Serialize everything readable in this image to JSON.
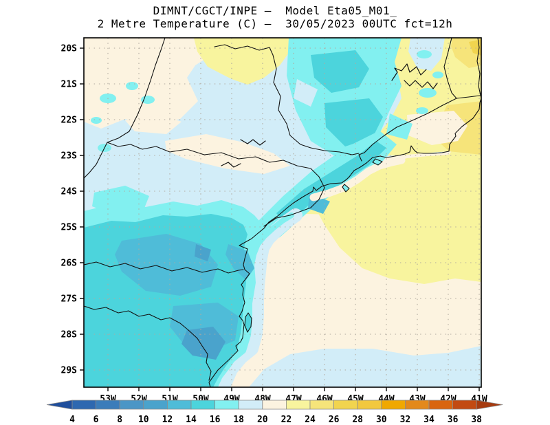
{
  "title": {
    "line1": "DIMNT/CGCT/INPE –  Model Eta05_M01_",
    "line2": "2 Metre Temperature (C) –  30/05/2023 00UTC fct=12h"
  },
  "axes": {
    "lat_labels": [
      "20S",
      "21S",
      "22S",
      "23S",
      "24S",
      "25S",
      "26S",
      "27S",
      "28S",
      "29S"
    ],
    "lon_labels": [
      "53W",
      "52W",
      "51W",
      "50W",
      "49W",
      "48W",
      "47W",
      "46W",
      "45W",
      "44W",
      "43W",
      "42W",
      "41W"
    ]
  },
  "colorbar": {
    "values": [
      "4",
      "6",
      "8",
      "10",
      "12",
      "14",
      "16",
      "18",
      "20",
      "22",
      "24",
      "26",
      "28",
      "30",
      "32",
      "34",
      "36",
      "38"
    ],
    "segment_colors": [
      "#2e68b0",
      "#3b7cba",
      "#4b96c6",
      "#4aa3cc",
      "#4fbcd8",
      "#4cd4dc",
      "#82f0f0",
      "#d2edf8",
      "#fcf3e0",
      "#f8f49e",
      "#f6e47a",
      "#f1d44f",
      "#f2c83e",
      "#f0a800",
      "#e3891b",
      "#d9650f",
      "#c24a12"
    ],
    "arrow_low_color": "#1f4e9c",
    "arrow_high_color": "#a63b10"
  },
  "map_colors": {
    "grid_dots": "#b1aa9f",
    "border_lines": "#121212",
    "frame": "#000000"
  }
}
